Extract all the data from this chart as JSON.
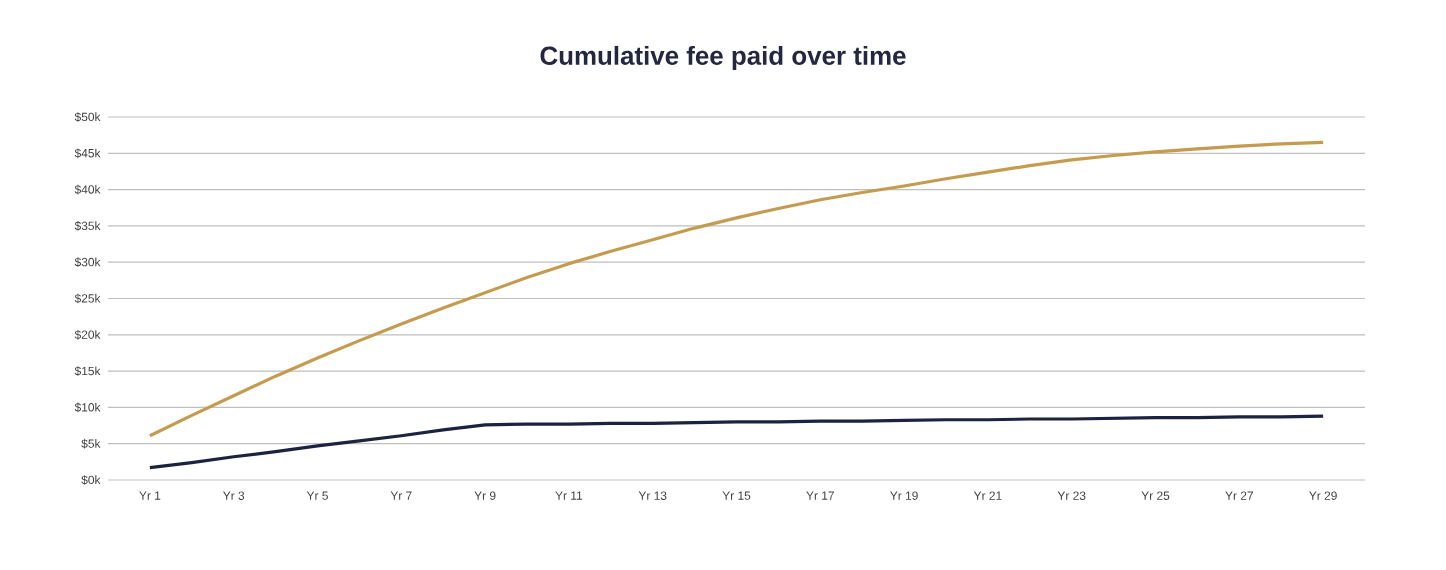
{
  "chart_data": {
    "type": "line",
    "title": "Cumulative fee paid over time",
    "categories": [
      "Yr 1",
      null,
      "Yr 3",
      null,
      "Yr 5",
      null,
      "Yr 7",
      null,
      "Yr 9",
      null,
      "Yr 11",
      null,
      "Yr 13",
      null,
      "Yr 15",
      null,
      "Yr 17",
      null,
      "Yr 19",
      null,
      "Yr 21",
      null,
      "Yr 23",
      null,
      "Yr 25",
      null,
      "Yr 27",
      null,
      "Yr 29"
    ],
    "series": [
      {
        "color": "#c59b4f",
        "values": [
          6.1,
          8.9,
          11.6,
          14.3,
          16.8,
          19.2,
          21.5,
          23.7,
          25.8,
          27.9,
          29.8,
          31.5,
          33.1,
          34.7,
          36.1,
          37.4,
          38.6,
          39.6,
          40.5,
          41.5,
          42.4,
          43.3,
          44.1,
          44.7,
          45.2,
          45.6,
          46.0,
          46.3,
          46.5
        ]
      },
      {
        "color": "#1c2340",
        "values": [
          1.7,
          2.4,
          3.2,
          3.9,
          4.7,
          5.4,
          6.1,
          6.9,
          7.6,
          7.7,
          7.7,
          7.8,
          7.8,
          7.9,
          8.0,
          8.0,
          8.1,
          8.1,
          8.2,
          8.3,
          8.3,
          8.4,
          8.4,
          8.5,
          8.6,
          8.6,
          8.7,
          8.7,
          8.8
        ]
      }
    ],
    "ylim": [
      0,
      50
    ],
    "yticks": [
      {
        "value": 0,
        "label": "$0k"
      },
      {
        "value": 5,
        "label": "$5k"
      },
      {
        "value": 10,
        "label": "$10k"
      },
      {
        "value": 15,
        "label": "$15k"
      },
      {
        "value": 20,
        "label": "$20k"
      },
      {
        "value": 25,
        "label": "$25k"
      },
      {
        "value": 30,
        "label": "$30k"
      },
      {
        "value": 35,
        "label": "$35k"
      },
      {
        "value": 40,
        "label": "$40k"
      },
      {
        "value": 45,
        "label": "$45k"
      },
      {
        "value": 50,
        "label": "$50k"
      }
    ],
    "grid": "y",
    "marker": "none",
    "line_style": "solid"
  }
}
